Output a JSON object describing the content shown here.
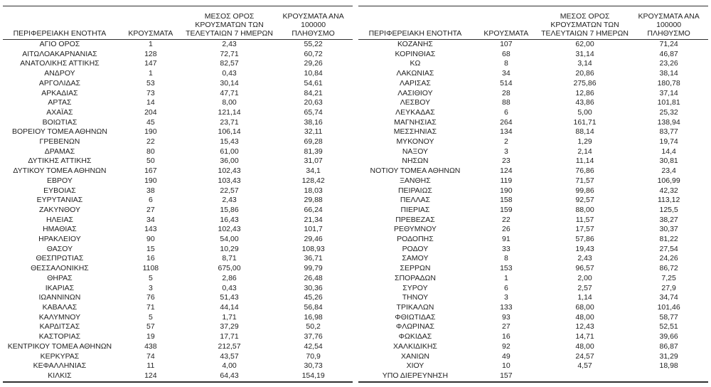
{
  "colors": {
    "background": "#ffffff",
    "text": "#1f1f1f",
    "line": "#2f2f2f"
  },
  "headers": {
    "region": "ΠΕΡΙΦΕΡΕΙΑΚΗ ΕΝΟΤΗΤΑ",
    "cases": "ΚΡΟΥΣΜΑΤΑ",
    "avg7": "ΜΕΣΟΣ ΟΡΟΣ\nΚΡΟΥΣΜΑΤΩΝ ΤΩΝ\nΤΕΛΕΥΤΑΙΩΝ 7 ΗΜΕΡΩΝ",
    "per100k": "ΚΡΟΥΣΜΑΤΑ ΑΝΑ 100000\nΠΛΗΘΥΣΜΟ"
  },
  "left_table": {
    "rows": [
      [
        "ΑΓΙΟ ΟΡΟΣ",
        "1",
        "2,43",
        "55,22"
      ],
      [
        "ΑΙΤΩΛΟΑΚΑΡΝΑΝΙΑΣ",
        "128",
        "72,71",
        "60,72"
      ],
      [
        "ΑΝΑΤΟΛΙΚΗΣ ΑΤΤΙΚΗΣ",
        "147",
        "82,57",
        "29,26"
      ],
      [
        "ΑΝΔΡΟΥ",
        "1",
        "0,43",
        "10,84"
      ],
      [
        "ΑΡΓΟΛΙΔΑΣ",
        "53",
        "30,14",
        "54,61"
      ],
      [
        "ΑΡΚΑΔΙΑΣ",
        "73",
        "47,71",
        "84,21"
      ],
      [
        "ΑΡΤΑΣ",
        "14",
        "8,00",
        "20,63"
      ],
      [
        "ΑΧΑΪΑΣ",
        "204",
        "121,14",
        "65,74"
      ],
      [
        "ΒΟΙΩΤΙΑΣ",
        "45",
        "23,71",
        "38,16"
      ],
      [
        "ΒΟΡΕΙΟΥ ΤΟΜΕΑ ΑΘΗΝΩΝ",
        "190",
        "106,14",
        "32,11"
      ],
      [
        "ΓΡΕΒΕΝΩΝ",
        "22",
        "15,43",
        "69,28"
      ],
      [
        "ΔΡΑΜΑΣ",
        "80",
        "61,00",
        "81,39"
      ],
      [
        "ΔΥΤΙΚΗΣ ΑΤΤΙΚΗΣ",
        "50",
        "36,00",
        "31,07"
      ],
      [
        "ΔΥΤΙΚΟΥ ΤΟΜΕΑ ΑΘΗΝΩΝ",
        "167",
        "102,43",
        "34,1"
      ],
      [
        "ΕΒΡΟΥ",
        "190",
        "103,43",
        "128,42"
      ],
      [
        "ΕΥΒΟΙΑΣ",
        "38",
        "22,57",
        "18,03"
      ],
      [
        "ΕΥΡΥΤΑΝΙΑΣ",
        "6",
        "2,43",
        "29,88"
      ],
      [
        "ΖΑΚΥΝΘΟΥ",
        "27",
        "15,86",
        "66,24"
      ],
      [
        "ΗΛΕΙΑΣ",
        "34",
        "16,43",
        "21,34"
      ],
      [
        "ΗΜΑΘΙΑΣ",
        "143",
        "102,43",
        "101,7"
      ],
      [
        "ΗΡΑΚΛΕΙΟΥ",
        "90",
        "54,00",
        "29,46"
      ],
      [
        "ΘΑΣΟΥ",
        "15",
        "10,29",
        "108,93"
      ],
      [
        "ΘΕΣΠΡΩΤΙΑΣ",
        "16",
        "8,71",
        "36,71"
      ],
      [
        "ΘΕΣΣΑΛΟΝΙΚΗΣ",
        "1108",
        "675,00",
        "99,79"
      ],
      [
        "ΘΗΡΑΣ",
        "5",
        "2,86",
        "26,48"
      ],
      [
        "ΙΚΑΡΙΑΣ",
        "3",
        "0,43",
        "30,36"
      ],
      [
        "ΙΩΑΝΝΙΝΩΝ",
        "76",
        "51,43",
        "45,26"
      ],
      [
        "ΚΑΒΑΛΑΣ",
        "71",
        "44,14",
        "56,84"
      ],
      [
        "ΚΑΛΥΜΝΟΥ",
        "5",
        "1,71",
        "16,98"
      ],
      [
        "ΚΑΡΔΙΤΣΑΣ",
        "57",
        "37,29",
        "50,2"
      ],
      [
        "ΚΑΣΤΟΡΙΑΣ",
        "19",
        "17,71",
        "37,76"
      ],
      [
        "ΚΕΝΤΡΙΚΟΥ ΤΟΜΕΑ ΑΘΗΝΩΝ",
        "438",
        "212,57",
        "42,54"
      ],
      [
        "ΚΕΡΚΥΡΑΣ",
        "74",
        "43,57",
        "70,9"
      ],
      [
        "ΚΕΦΑΛΛΗΝΙΑΣ",
        "11",
        "4,00",
        "30,73"
      ],
      [
        "ΚΙΛΚΙΣ",
        "124",
        "64,43",
        "154,19"
      ]
    ]
  },
  "right_table": {
    "rows": [
      [
        "ΚΟΖΑΝΗΣ",
        "107",
        "62,00",
        "71,24"
      ],
      [
        "ΚΟΡΙΝΘΙΑΣ",
        "68",
        "31,14",
        "46,87"
      ],
      [
        "ΚΩ",
        "8",
        "3,14",
        "23,26"
      ],
      [
        "ΛΑΚΩΝΙΑΣ",
        "34",
        "20,86",
        "38,14"
      ],
      [
        "ΛΑΡΙΣΑΣ",
        "514",
        "275,86",
        "180,78"
      ],
      [
        "ΛΑΣΙΘΙΟΥ",
        "28",
        "12,86",
        "37,14"
      ],
      [
        "ΛΕΣΒΟΥ",
        "88",
        "43,86",
        "101,81"
      ],
      [
        "ΛΕΥΚΑΔΑΣ",
        "6",
        "5,00",
        "25,32"
      ],
      [
        "ΜΑΓΝΗΣΙΑΣ",
        "264",
        "161,71",
        "138,94"
      ],
      [
        "ΜΕΣΣΗΝΙΑΣ",
        "134",
        "88,14",
        "83,77"
      ],
      [
        "ΜΥΚΟΝΟΥ",
        "2",
        "1,29",
        "19,74"
      ],
      [
        "ΝΑΞΟΥ",
        "3",
        "2,14",
        "14,4"
      ],
      [
        "ΝΗΣΩΝ",
        "23",
        "11,14",
        "30,81"
      ],
      [
        "ΝΟΤΙΟΥ ΤΟΜΕΑ ΑΘΗΝΩΝ",
        "124",
        "76,86",
        "23,4"
      ],
      [
        "ΞΑΝΘΗΣ",
        "119",
        "71,57",
        "106,99"
      ],
      [
        "ΠΕΙΡΑΙΩΣ",
        "190",
        "99,86",
        "42,32"
      ],
      [
        "ΠΕΛΛΑΣ",
        "158",
        "92,57",
        "113,12"
      ],
      [
        "ΠΙΕΡΙΑΣ",
        "159",
        "88,00",
        "125,5"
      ],
      [
        "ΠΡΕΒΕΖΑΣ",
        "22",
        "11,57",
        "38,27"
      ],
      [
        "ΡΕΘΥΜΝΟΥ",
        "26",
        "17,57",
        "30,37"
      ],
      [
        "ΡΟΔΟΠΗΣ",
        "91",
        "57,86",
        "81,22"
      ],
      [
        "ΡΟΔΟΥ",
        "33",
        "19,43",
        "27,54"
      ],
      [
        "ΣΑΜΟΥ",
        "8",
        "2,43",
        "24,26"
      ],
      [
        "ΣΕΡΡΩΝ",
        "153",
        "96,57",
        "86,72"
      ],
      [
        "ΣΠΟΡΑΔΩΝ",
        "1",
        "2,00",
        "7,25"
      ],
      [
        "ΣΥΡΟΥ",
        "6",
        "2,57",
        "27,9"
      ],
      [
        "ΤΗΝΟΥ",
        "3",
        "1,14",
        "34,74"
      ],
      [
        "ΤΡΙΚΑΛΩΝ",
        "133",
        "68,00",
        "101,46"
      ],
      [
        "ΦΘΙΩΤΙΔΑΣ",
        "93",
        "48,00",
        "58,77"
      ],
      [
        "ΦΛΩΡΙΝΑΣ",
        "27",
        "12,43",
        "52,51"
      ],
      [
        "ΦΩΚΙΔΑΣ",
        "16",
        "14,71",
        "39,66"
      ],
      [
        "ΧΑΛΚΙΔΙΚΗΣ",
        "92",
        "48,00",
        "86,87"
      ],
      [
        "ΧΑΝΙΩΝ",
        "49",
        "24,57",
        "31,29"
      ],
      [
        "ΧΙΟΥ",
        "10",
        "4,57",
        "18,98"
      ],
      [
        "ΥΠΟ ΔΙΕΡΕΥΝΗΣΗ",
        "157",
        "",
        ""
      ]
    ]
  }
}
